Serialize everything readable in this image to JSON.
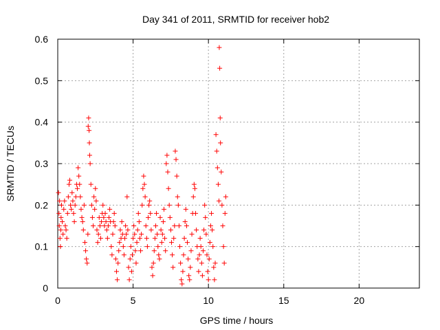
{
  "chart_data": {
    "type": "scatter",
    "title": "Day 341 of 2011, SRMTID for receiver hob2",
    "xlabel": "GPS time / hours",
    "ylabel": "SRMTID / TECUs",
    "xlim": [
      0,
      24
    ],
    "ylim": [
      0,
      0.6
    ],
    "xticks": [
      "0",
      "5",
      "10",
      "15",
      "20"
    ],
    "yticks": [
      "0",
      "0.1",
      "0.2",
      "0.3",
      "0.4",
      "0.5",
      "0.6"
    ],
    "grid": true,
    "legend": "none",
    "marker": "+",
    "color": "#ff0000",
    "series": [
      {
        "points": [
          [
            0.05,
            0.23
          ],
          [
            0.08,
            0.18
          ],
          [
            0.1,
            0.15
          ],
          [
            0.12,
            0.21
          ],
          [
            0.15,
            0.12
          ],
          [
            0.18,
            0.1
          ],
          [
            0.2,
            0.14
          ],
          [
            0.22,
            0.17
          ],
          [
            0.25,
            0.2
          ],
          [
            0.3,
            0.16
          ],
          [
            0.35,
            0.13
          ],
          [
            0.4,
            0.19
          ],
          [
            0.45,
            0.21
          ],
          [
            0.5,
            0.15
          ],
          [
            0.55,
            0.14
          ],
          [
            0.6,
            0.12
          ],
          [
            0.65,
            0.18
          ],
          [
            0.7,
            0.22
          ],
          [
            0.75,
            0.25
          ],
          [
            0.8,
            0.26
          ],
          [
            0.85,
            0.2
          ],
          [
            0.9,
            0.19
          ],
          [
            0.95,
            0.23
          ],
          [
            1.0,
            0.21
          ],
          [
            1.05,
            0.18
          ],
          [
            1.1,
            0.16
          ],
          [
            1.15,
            0.2
          ],
          [
            1.2,
            0.22
          ],
          [
            1.25,
            0.25
          ],
          [
            1.3,
            0.24
          ],
          [
            1.35,
            0.29
          ],
          [
            1.4,
            0.27
          ],
          [
            1.45,
            0.25
          ],
          [
            1.5,
            0.22
          ],
          [
            1.55,
            0.19
          ],
          [
            1.6,
            0.17
          ],
          [
            1.65,
            0.16
          ],
          [
            1.7,
            0.14
          ],
          [
            1.75,
            0.2
          ],
          [
            1.8,
            0.11
          ],
          [
            1.85,
            0.09
          ],
          [
            1.9,
            0.07
          ],
          [
            1.95,
            0.06
          ],
          [
            2.0,
            0.13
          ],
          [
            2.02,
            0.39
          ],
          [
            2.05,
            0.41
          ],
          [
            2.08,
            0.38
          ],
          [
            2.1,
            0.35
          ],
          [
            2.12,
            0.32
          ],
          [
            2.15,
            0.3
          ],
          [
            2.2,
            0.25
          ],
          [
            2.25,
            0.2
          ],
          [
            2.3,
            0.17
          ],
          [
            2.35,
            0.15
          ],
          [
            2.4,
            0.22
          ],
          [
            2.45,
            0.19
          ],
          [
            2.5,
            0.24
          ],
          [
            2.55,
            0.21
          ],
          [
            2.6,
            0.14
          ],
          [
            2.65,
            0.11
          ],
          [
            2.7,
            0.13
          ],
          [
            2.75,
            0.17
          ],
          [
            2.8,
            0.15
          ],
          [
            2.85,
            0.12
          ],
          [
            2.9,
            0.16
          ],
          [
            2.95,
            0.18
          ],
          [
            3.0,
            0.2
          ],
          [
            3.05,
            0.17
          ],
          [
            3.1,
            0.15
          ],
          [
            3.15,
            0.18
          ],
          [
            3.2,
            0.16
          ],
          [
            3.25,
            0.14
          ],
          [
            3.3,
            0.12
          ],
          [
            3.35,
            0.15
          ],
          [
            3.4,
            0.17
          ],
          [
            3.45,
            0.19
          ],
          [
            3.5,
            0.16
          ],
          [
            3.55,
            0.1
          ],
          [
            3.6,
            0.08
          ],
          [
            3.65,
            0.13
          ],
          [
            3.7,
            0.16
          ],
          [
            3.75,
            0.18
          ],
          [
            3.8,
            0.15
          ],
          [
            3.85,
            0.07
          ],
          [
            3.9,
            0.04
          ],
          [
            3.95,
            0.02
          ],
          [
            4.0,
            0.06
          ],
          [
            4.05,
            0.09
          ],
          [
            4.1,
            0.11
          ],
          [
            4.15,
            0.14
          ],
          [
            4.2,
            0.12
          ],
          [
            4.25,
            0.16
          ],
          [
            4.3,
            0.13
          ],
          [
            4.35,
            0.1
          ],
          [
            4.4,
            0.08
          ],
          [
            4.45,
            0.12
          ],
          [
            4.5,
            0.15
          ],
          [
            4.55,
            0.13
          ],
          [
            4.6,
            0.22
          ],
          [
            4.65,
            0.14
          ],
          [
            4.7,
            0.05
          ],
          [
            4.75,
            0.02
          ],
          [
            4.8,
            0.07
          ],
          [
            4.85,
            0.1
          ],
          [
            4.9,
            0.04
          ],
          [
            4.95,
            0.08
          ],
          [
            5.0,
            0.12
          ],
          [
            5.05,
            0.15
          ],
          [
            5.1,
            0.13
          ],
          [
            5.15,
            0.09
          ],
          [
            5.2,
            0.06
          ],
          [
            5.25,
            0.11
          ],
          [
            5.3,
            0.14
          ],
          [
            5.35,
            0.18
          ],
          [
            5.4,
            0.16
          ],
          [
            5.45,
            0.12
          ],
          [
            5.5,
            0.09
          ],
          [
            5.55,
            0.13
          ],
          [
            5.6,
            0.2
          ],
          [
            5.65,
            0.24
          ],
          [
            5.7,
            0.27
          ],
          [
            5.75,
            0.25
          ],
          [
            5.8,
            0.22
          ],
          [
            5.85,
            0.15
          ],
          [
            5.9,
            0.12
          ],
          [
            5.95,
            0.1
          ],
          [
            6.0,
            0.17
          ],
          [
            6.05,
            0.2
          ],
          [
            6.1,
            0.21
          ],
          [
            6.15,
            0.18
          ],
          [
            6.2,
            0.14
          ],
          [
            6.25,
            0.05
          ],
          [
            6.3,
            0.03
          ],
          [
            6.35,
            0.06
          ],
          [
            6.4,
            0.09
          ],
          [
            6.45,
            0.12
          ],
          [
            6.5,
            0.15
          ],
          [
            6.55,
            0.18
          ],
          [
            6.6,
            0.13
          ],
          [
            6.65,
            0.1
          ],
          [
            6.7,
            0.08
          ],
          [
            6.75,
            0.07
          ],
          [
            6.8,
            0.17
          ],
          [
            6.85,
            0.14
          ],
          [
            6.9,
            0.11
          ],
          [
            6.95,
            0.13
          ],
          [
            7.0,
            0.16
          ],
          [
            7.05,
            0.19
          ],
          [
            7.1,
            0.12
          ],
          [
            7.15,
            0.09
          ],
          [
            7.2,
            0.3
          ],
          [
            7.25,
            0.32
          ],
          [
            7.3,
            0.28
          ],
          [
            7.35,
            0.24
          ],
          [
            7.4,
            0.2
          ],
          [
            7.45,
            0.17
          ],
          [
            7.5,
            0.14
          ],
          [
            7.55,
            0.11
          ],
          [
            7.6,
            0.08
          ],
          [
            7.65,
            0.05
          ],
          [
            7.7,
            0.12
          ],
          [
            7.75,
            0.15
          ],
          [
            7.8,
            0.33
          ],
          [
            7.85,
            0.31
          ],
          [
            7.9,
            0.27
          ],
          [
            7.95,
            0.22
          ],
          [
            8.0,
            0.2
          ],
          [
            8.05,
            0.15
          ],
          [
            8.1,
            0.1
          ],
          [
            8.15,
            0.06
          ],
          [
            8.2,
            0.02
          ],
          [
            8.25,
            0.01
          ],
          [
            8.3,
            0.04
          ],
          [
            8.35,
            0.08
          ],
          [
            8.4,
            0.12
          ],
          [
            8.45,
            0.16
          ],
          [
            8.5,
            0.19
          ],
          [
            8.55,
            0.15
          ],
          [
            8.6,
            0.11
          ],
          [
            8.65,
            0.07
          ],
          [
            8.7,
            0.03
          ],
          [
            8.75,
            0.02
          ],
          [
            8.8,
            0.05
          ],
          [
            8.85,
            0.09
          ],
          [
            8.9,
            0.13
          ],
          [
            8.95,
            0.18
          ],
          [
            9.0,
            0.22
          ],
          [
            9.05,
            0.25
          ],
          [
            9.1,
            0.24
          ],
          [
            9.15,
            0.18
          ],
          [
            9.2,
            0.14
          ],
          [
            9.25,
            0.1
          ],
          [
            9.3,
            0.07
          ],
          [
            9.35,
            0.04
          ],
          [
            9.4,
            0.08
          ],
          [
            9.45,
            0.12
          ],
          [
            9.5,
            0.1
          ],
          [
            9.55,
            0.06
          ],
          [
            9.6,
            0.03
          ],
          [
            9.65,
            0.09
          ],
          [
            9.7,
            0.14
          ],
          [
            9.75,
            0.2
          ],
          [
            9.8,
            0.17
          ],
          [
            9.85,
            0.13
          ],
          [
            9.9,
            0.08
          ],
          [
            9.95,
            0.04
          ],
          [
            10.0,
            0.02
          ],
          [
            10.05,
            0.07
          ],
          [
            10.1,
            0.11
          ],
          [
            10.15,
            0.15
          ],
          [
            10.2,
            0.18
          ],
          [
            10.25,
            0.14
          ],
          [
            10.3,
            0.1
          ],
          [
            10.35,
            0.05
          ],
          [
            10.4,
            0.02
          ],
          [
            10.45,
            0.06
          ],
          [
            10.5,
            0.37
          ],
          [
            10.55,
            0.33
          ],
          [
            10.6,
            0.29
          ],
          [
            10.65,
            0.25
          ],
          [
            10.7,
            0.21
          ],
          [
            10.72,
            0.58
          ],
          [
            10.75,
            0.53
          ],
          [
            10.78,
            0.41
          ],
          [
            10.8,
            0.35
          ],
          [
            10.85,
            0.28
          ],
          [
            10.9,
            0.2
          ],
          [
            10.95,
            0.15
          ],
          [
            11.0,
            0.1
          ],
          [
            11.05,
            0.06
          ],
          [
            11.1,
            0.18
          ],
          [
            11.15,
            0.22
          ]
        ]
      }
    ]
  }
}
